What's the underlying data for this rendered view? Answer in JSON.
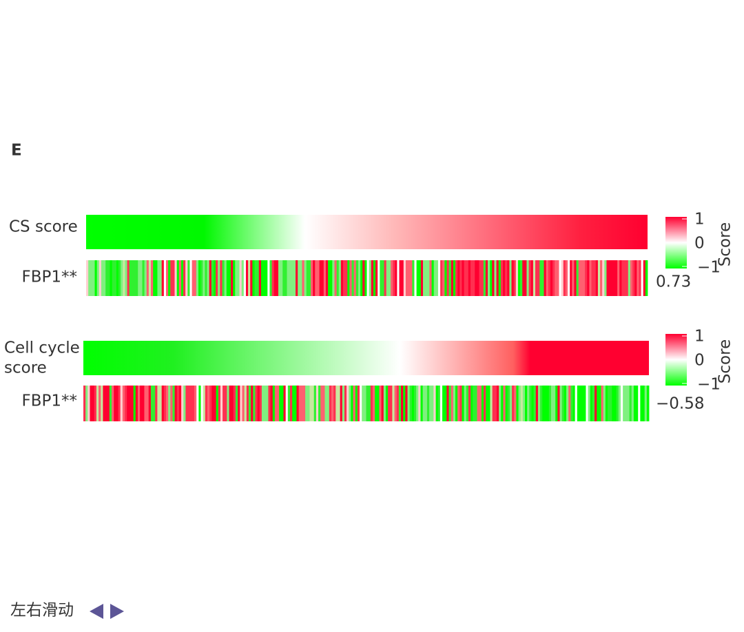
{
  "panel_label": "E",
  "panels": [
    {
      "row_labels": [
        [
          "CS score"
        ],
        [
          "FBP1**"
        ]
      ],
      "legend": {
        "ticks": [
          "1",
          "0",
          "−1"
        ],
        "title": "Score"
      },
      "correlation": "0.73"
    },
    {
      "row_labels": [
        [
          "Cell cycle",
          "score"
        ],
        [
          "FBP1**"
        ]
      ],
      "legend": {
        "ticks": [
          "1",
          "0",
          "−1"
        ],
        "title": "Score"
      },
      "correlation": "−0.58"
    }
  ],
  "footer": {
    "hint": "左右滑动"
  }
}
